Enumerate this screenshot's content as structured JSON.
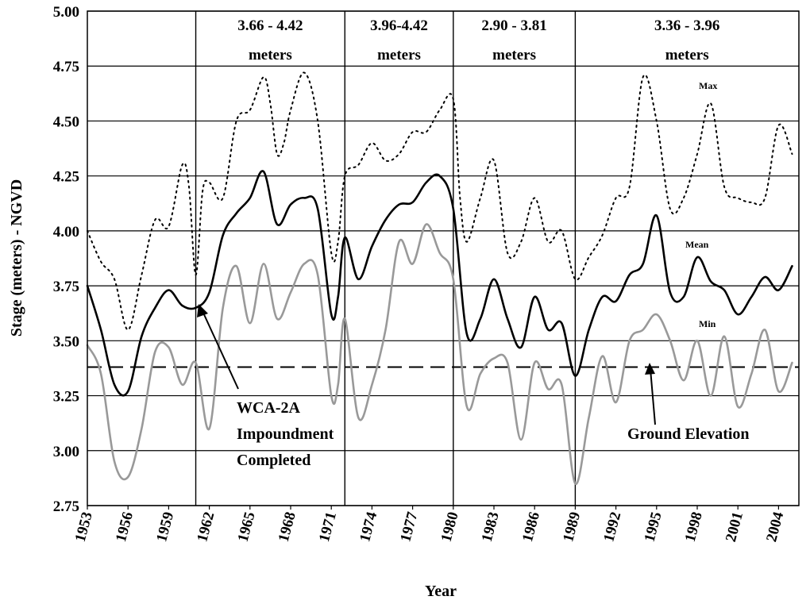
{
  "chart_data": {
    "type": "line",
    "xlabel": "Year",
    "ylabel": "Stage (meters) - NGVD",
    "xlim": [
      1953,
      2005.5
    ],
    "ylim": [
      2.75,
      5.0
    ],
    "y_ticks": [
      "5.00",
      "4.75",
      "4.50",
      "4.25",
      "4.00",
      "3.75",
      "3.50",
      "3.25",
      "3.00",
      "2.75"
    ],
    "x_ticks": [
      "1953",
      "1956",
      "1959",
      "1962",
      "1965",
      "1968",
      "1971",
      "1974",
      "1977",
      "1980",
      "1983",
      "1986",
      "1989",
      "1992",
      "1995",
      "1998",
      "2001",
      "2004"
    ],
    "grid": "horizontal",
    "dividers": [
      1961,
      1972,
      1980,
      1989
    ],
    "periods": [
      {
        "range": "3.66 - 4.42",
        "unit": "meters"
      },
      {
        "range": "3.96-4.42",
        "unit": "meters"
      },
      {
        "range": "2.90 - 3.81",
        "unit": "meters"
      },
      {
        "range": "3.36 - 3.96",
        "unit": "meters"
      }
    ],
    "ground_elevation": 3.38,
    "series": [
      {
        "name": "Max",
        "style": "dotted",
        "color": "#000000",
        "x": [
          1953,
          1954,
          1955,
          1956,
          1957,
          1958,
          1959,
          1960,
          1960.5,
          1961,
          1961.5,
          1962,
          1963,
          1964,
          1965,
          1966,
          1966.5,
          1967,
          1967.5,
          1968,
          1969,
          1970,
          1971,
          1971.5,
          1972,
          1973,
          1974,
          1975,
          1976,
          1977,
          1978,
          1979,
          1980,
          1980.5,
          1981,
          1982,
          1983,
          1984,
          1985,
          1986,
          1987,
          1988,
          1989,
          1990,
          1991,
          1992,
          1993,
          1994,
          1995,
          1996,
          1997,
          1998,
          1999,
          2000,
          2001,
          2002,
          2003,
          2004,
          2005
        ],
        "y": [
          4.0,
          3.86,
          3.78,
          3.55,
          3.8,
          4.05,
          4.02,
          4.3,
          4.2,
          3.8,
          4.18,
          4.22,
          4.15,
          4.5,
          4.55,
          4.7,
          4.58,
          4.35,
          4.4,
          4.55,
          4.72,
          4.5,
          3.9,
          3.95,
          4.25,
          4.3,
          4.4,
          4.32,
          4.35,
          4.45,
          4.45,
          4.55,
          4.6,
          4.15,
          3.95,
          4.15,
          4.32,
          3.9,
          3.95,
          4.15,
          3.95,
          4.0,
          3.78,
          3.88,
          3.98,
          4.15,
          4.2,
          4.7,
          4.5,
          4.1,
          4.15,
          4.35,
          4.58,
          4.2,
          4.15,
          4.13,
          4.15,
          4.48,
          4.35
        ]
      },
      {
        "name": "Mean",
        "style": "solid",
        "color": "#000000",
        "x": [
          1953,
          1954,
          1955,
          1956,
          1957,
          1958,
          1959,
          1960,
          1961,
          1962,
          1963,
          1964,
          1965,
          1966,
          1967,
          1968,
          1969,
          1970,
          1971,
          1971.5,
          1972,
          1973,
          1974,
          1975,
          1976,
          1977,
          1978,
          1979,
          1980,
          1981,
          1982,
          1983,
          1984,
          1985,
          1986,
          1987,
          1988,
          1989,
          1990,
          1991,
          1992,
          1993,
          1994,
          1995,
          1996,
          1997,
          1998,
          1999,
          2000,
          2001,
          2002,
          2003,
          2004,
          2005
        ],
        "y": [
          3.75,
          3.55,
          3.3,
          3.27,
          3.52,
          3.65,
          3.73,
          3.66,
          3.65,
          3.72,
          3.98,
          4.08,
          4.15,
          4.27,
          4.03,
          4.12,
          4.15,
          4.1,
          3.62,
          3.7,
          3.97,
          3.78,
          3.93,
          4.05,
          4.12,
          4.13,
          4.22,
          4.25,
          4.1,
          3.53,
          3.6,
          3.78,
          3.6,
          3.47,
          3.7,
          3.55,
          3.58,
          3.34,
          3.55,
          3.7,
          3.68,
          3.8,
          3.85,
          4.07,
          3.72,
          3.7,
          3.88,
          3.77,
          3.73,
          3.62,
          3.7,
          3.79,
          3.73,
          3.84
        ]
      },
      {
        "name": "Min",
        "style": "solid",
        "color": "#999999",
        "x": [
          1953,
          1954,
          1955,
          1956,
          1957,
          1958,
          1959,
          1960,
          1961,
          1962,
          1963,
          1964,
          1965,
          1966,
          1967,
          1968,
          1969,
          1970,
          1971,
          1971.5,
          1972,
          1973,
          1974,
          1975,
          1976,
          1977,
          1978,
          1979,
          1980,
          1981,
          1982,
          1983,
          1984,
          1985,
          1986,
          1987,
          1988,
          1989,
          1990,
          1991,
          1992,
          1993,
          1994,
          1995,
          1996,
          1997,
          1998,
          1999,
          2000,
          2001,
          2002,
          2003,
          2004,
          2005
        ],
        "y": [
          3.48,
          3.35,
          2.95,
          2.88,
          3.1,
          3.45,
          3.47,
          3.3,
          3.4,
          3.1,
          3.65,
          3.84,
          3.58,
          3.85,
          3.6,
          3.72,
          3.85,
          3.8,
          3.25,
          3.3,
          3.6,
          3.15,
          3.3,
          3.55,
          3.95,
          3.85,
          4.03,
          3.9,
          3.78,
          3.2,
          3.35,
          3.42,
          3.4,
          3.05,
          3.4,
          3.28,
          3.3,
          2.85,
          3.15,
          3.43,
          3.22,
          3.5,
          3.55,
          3.62,
          3.5,
          3.32,
          3.5,
          3.25,
          3.52,
          3.2,
          3.35,
          3.55,
          3.27,
          3.4
        ]
      }
    ],
    "annotations": {
      "max_label": "Max",
      "mean_label": "Mean",
      "min_label": "Min",
      "wca": [
        "WCA-2A",
        "Impoundment",
        "Completed"
      ],
      "ground": "Ground Elevation"
    }
  }
}
